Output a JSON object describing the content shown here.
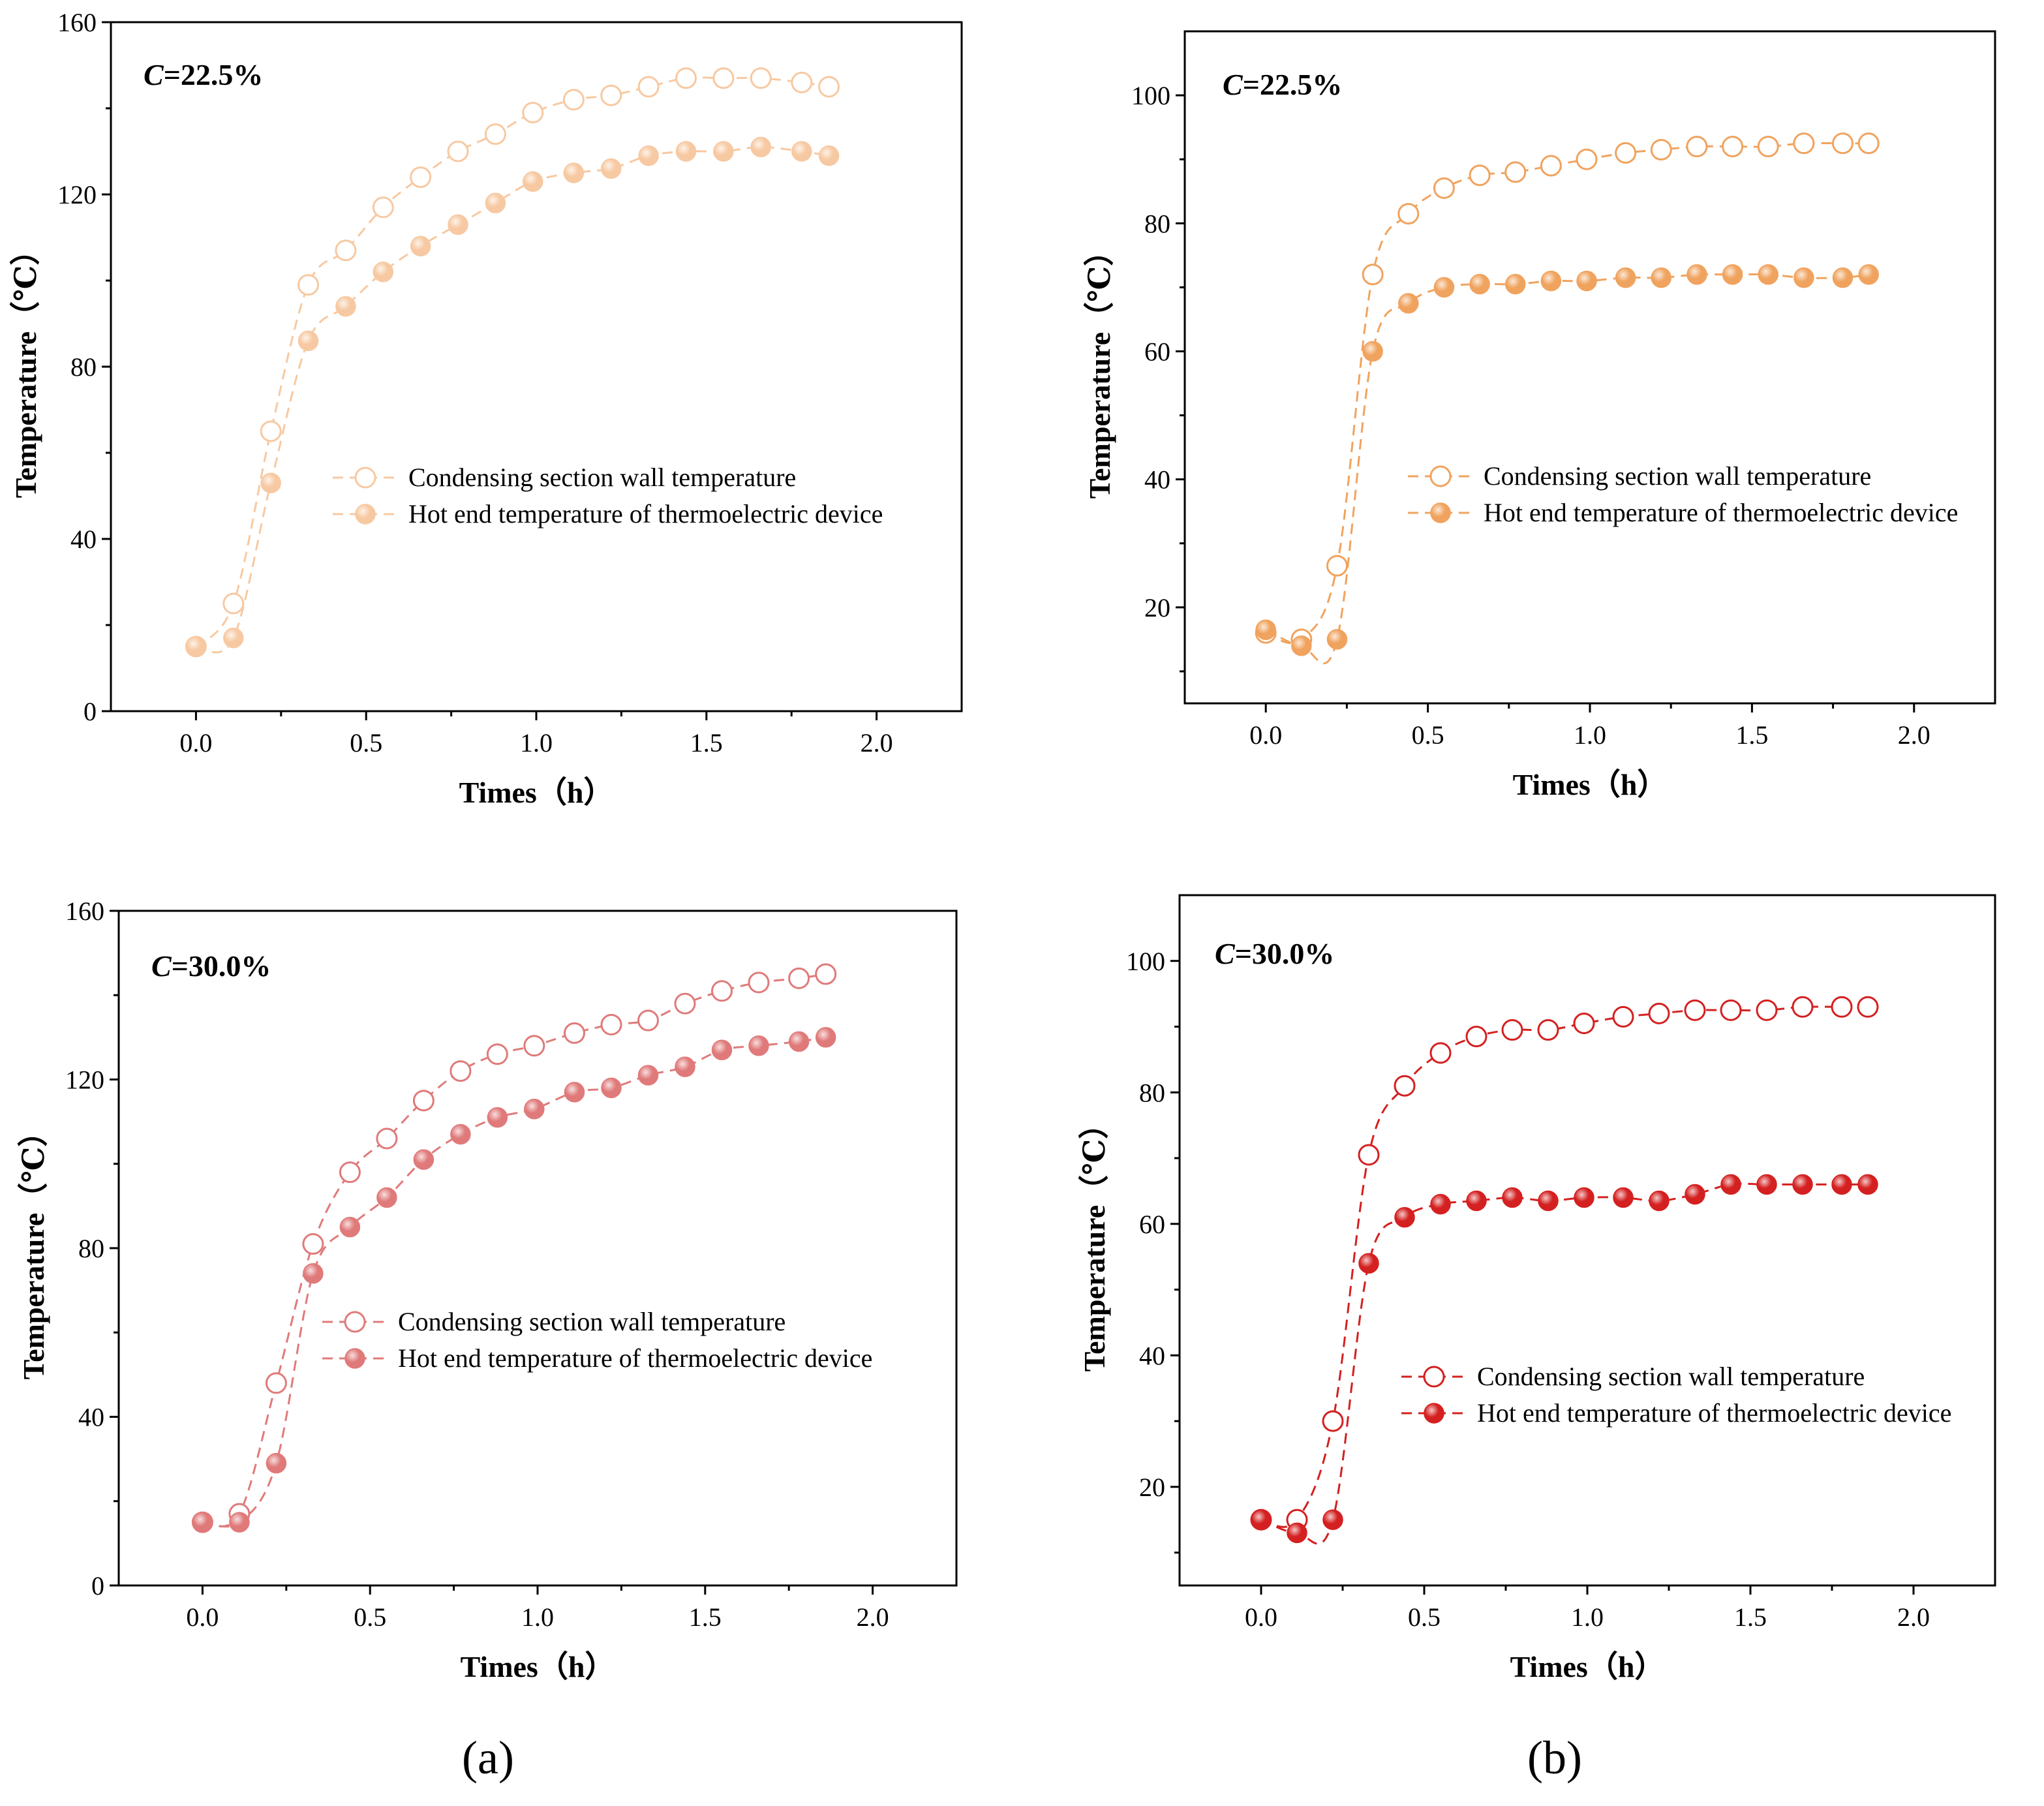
{
  "panel_labels": [
    "(a)",
    "(b)"
  ],
  "chart_data": [
    {
      "id": "a-top",
      "type": "line",
      "title": "",
      "annotation": {
        "prefix": "C",
        "text": "=22.5%"
      },
      "xlabel": "Times（h）",
      "ylabel": "Temperature（℃）",
      "xlim": [
        -0.25,
        2.25
      ],
      "ylim": [
        0,
        160
      ],
      "xticks": [
        0,
        0.5,
        1.0,
        1.5,
        2.0
      ],
      "xtick_labels": [
        "0.0",
        "0.5",
        "1.0",
        "1.5",
        "2.0"
      ],
      "yticks": [
        0,
        40,
        80,
        120,
        160
      ],
      "ytick_labels": [
        "0",
        "40",
        "80",
        "120",
        "160"
      ],
      "legend_position": "center-right",
      "series": [
        {
          "name": "Condensing section wall temperature",
          "marker": "open-circle",
          "color": "#F7C9A2",
          "x": [
            0,
            0.11,
            0.22,
            0.33,
            0.44,
            0.55,
            0.66,
            0.77,
            0.88,
            0.99,
            1.11,
            1.22,
            1.33,
            1.44,
            1.55,
            1.66,
            1.78,
            1.86
          ],
          "y": [
            15,
            25,
            65,
            99,
            107,
            117,
            124,
            130,
            134,
            139,
            142,
            143,
            145,
            147,
            147,
            147,
            146,
            145
          ]
        },
        {
          "name": "Hot end temperature of thermoelectric device",
          "marker": "filled-circle",
          "color": "#F7C9A2",
          "x": [
            0,
            0.11,
            0.22,
            0.33,
            0.44,
            0.55,
            0.66,
            0.77,
            0.88,
            0.99,
            1.11,
            1.22,
            1.33,
            1.44,
            1.55,
            1.66,
            1.78,
            1.86
          ],
          "y": [
            15,
            17,
            53,
            86,
            94,
            102,
            108,
            113,
            118,
            123,
            125,
            126,
            129,
            130,
            130,
            131,
            130,
            129
          ]
        }
      ]
    },
    {
      "id": "b-top",
      "type": "line",
      "title": "",
      "annotation": {
        "prefix": "C",
        "text": "=22.5%"
      },
      "xlabel": "Times（h）",
      "ylabel": "Temperature（℃）",
      "xlim": [
        -0.25,
        2.25
      ],
      "ylim": [
        5,
        110
      ],
      "xticks": [
        0,
        0.5,
        1.0,
        1.5,
        2.0
      ],
      "xtick_labels": [
        "0.0",
        "0.5",
        "1.0",
        "1.5",
        "2.0"
      ],
      "yticks": [
        20,
        40,
        60,
        80,
        100
      ],
      "ytick_labels": [
        "20",
        "40",
        "60",
        "80",
        "100"
      ],
      "legend_position": "center-right",
      "series": [
        {
          "name": "Condensing section wall temperature",
          "marker": "open-circle",
          "color": "#F0A35E",
          "x": [
            0,
            0.11,
            0.22,
            0.33,
            0.44,
            0.55,
            0.66,
            0.77,
            0.88,
            0.99,
            1.11,
            1.22,
            1.33,
            1.44,
            1.55,
            1.66,
            1.78,
            1.86
          ],
          "y": [
            16,
            15,
            26.5,
            72,
            81.5,
            85.5,
            87.5,
            88,
            89,
            90,
            91,
            91.5,
            92,
            92,
            92,
            92.5,
            92.5,
            92.5
          ]
        },
        {
          "name": "Hot end temperature of thermoelectric device",
          "marker": "filled-circle",
          "color": "#F0A35E",
          "x": [
            0,
            0.11,
            0.22,
            0.33,
            0.44,
            0.55,
            0.66,
            0.77,
            0.88,
            0.99,
            1.11,
            1.22,
            1.33,
            1.44,
            1.55,
            1.66,
            1.78,
            1.86
          ],
          "y": [
            16.5,
            14,
            15,
            60,
            67.5,
            70,
            70.5,
            70.5,
            71,
            71,
            71.5,
            71.5,
            72,
            72,
            72,
            71.5,
            71.5,
            72
          ]
        }
      ]
    },
    {
      "id": "a-bottom",
      "type": "line",
      "title": "",
      "annotation": {
        "prefix": "C",
        "text": "=30.0%"
      },
      "xlabel": "Times（h）",
      "ylabel": "Temperature（℃）",
      "xlim": [
        -0.25,
        2.25
      ],
      "ylim": [
        0,
        160
      ],
      "xticks": [
        0,
        0.5,
        1.0,
        1.5,
        2.0
      ],
      "xtick_labels": [
        "0.0",
        "0.5",
        "1.0",
        "1.5",
        "2.0"
      ],
      "yticks": [
        0,
        40,
        80,
        120,
        160
      ],
      "ytick_labels": [
        "0",
        "40",
        "80",
        "120",
        "160"
      ],
      "legend_position": "center-right",
      "series": [
        {
          "name": "Condensing section wall temperature",
          "marker": "open-circle",
          "color": "#E07A7A",
          "x": [
            0,
            0.11,
            0.22,
            0.33,
            0.44,
            0.55,
            0.66,
            0.77,
            0.88,
            0.99,
            1.11,
            1.22,
            1.33,
            1.44,
            1.55,
            1.66,
            1.78,
            1.86
          ],
          "y": [
            15,
            17,
            48,
            81,
            98,
            106,
            115,
            122,
            126,
            128,
            131,
            133,
            134,
            138,
            141,
            143,
            144,
            145
          ]
        },
        {
          "name": "Hot end temperature of thermoelectric device",
          "marker": "filled-circle",
          "color": "#E07A7A",
          "x": [
            0,
            0.11,
            0.22,
            0.33,
            0.44,
            0.55,
            0.66,
            0.77,
            0.88,
            0.99,
            1.11,
            1.22,
            1.33,
            1.44,
            1.55,
            1.66,
            1.78,
            1.86
          ],
          "y": [
            15,
            15,
            29,
            74,
            85,
            92,
            101,
            107,
            111,
            113,
            117,
            118,
            121,
            123,
            127,
            128,
            129,
            130
          ]
        }
      ]
    },
    {
      "id": "b-bottom",
      "type": "line",
      "title": "",
      "annotation": {
        "prefix": "C",
        "text": "=30.0%"
      },
      "xlabel": "Times（h）",
      "ylabel": "Temperature（℃）",
      "xlim": [
        -0.25,
        2.25
      ],
      "ylim": [
        5,
        110
      ],
      "xticks": [
        0,
        0.5,
        1.0,
        1.5,
        2.0
      ],
      "xtick_labels": [
        "0.0",
        "0.5",
        "1.0",
        "1.5",
        "2.0"
      ],
      "yticks": [
        20,
        40,
        60,
        80,
        100
      ],
      "ytick_labels": [
        "20",
        "40",
        "60",
        "80",
        "100"
      ],
      "legend_position": "center-right",
      "series": [
        {
          "name": "Condensing section wall temperature",
          "marker": "open-circle",
          "color": "#D42020",
          "x": [
            0,
            0.11,
            0.22,
            0.33,
            0.44,
            0.55,
            0.66,
            0.77,
            0.88,
            0.99,
            1.11,
            1.22,
            1.33,
            1.44,
            1.55,
            1.66,
            1.78,
            1.86
          ],
          "y": [
            15,
            15,
            30,
            70.5,
            81,
            86,
            88.5,
            89.5,
            89.5,
            90.5,
            91.5,
            92,
            92.5,
            92.5,
            92.5,
            93,
            93,
            93
          ]
        },
        {
          "name": "Hot end temperature of thermoelectric device",
          "marker": "filled-circle",
          "color": "#D42020",
          "x": [
            0,
            0.11,
            0.22,
            0.33,
            0.44,
            0.55,
            0.66,
            0.77,
            0.88,
            0.99,
            1.11,
            1.22,
            1.33,
            1.44,
            1.55,
            1.66,
            1.78,
            1.86
          ],
          "y": [
            15,
            13,
            15,
            54,
            61,
            63,
            63.5,
            64,
            63.5,
            64,
            64,
            63.5,
            64.5,
            66,
            66,
            66,
            66,
            66
          ]
        }
      ]
    }
  ]
}
